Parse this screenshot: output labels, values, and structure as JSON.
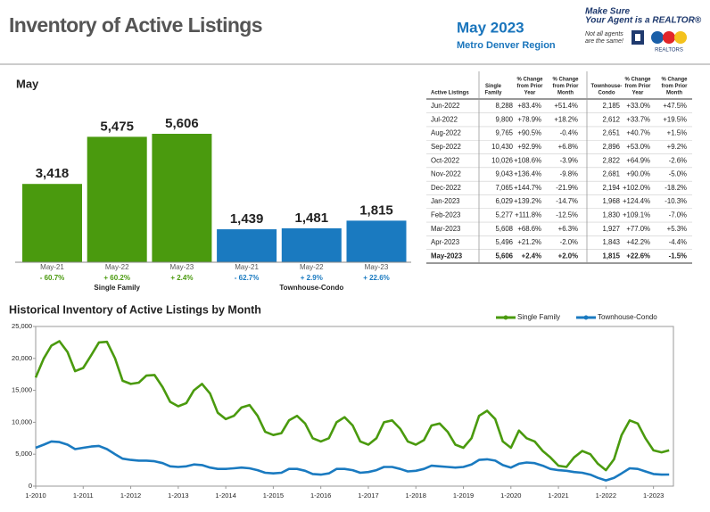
{
  "header": {
    "title": "Inventory of Active Listings",
    "period": "May 2023",
    "region": "Metro Denver Region",
    "logo": {
      "line1": "Make Sure",
      "line2": "Your Agent is a REALTOR®",
      "tag1": "Not all agents",
      "tag2": "are the same!",
      "mark": "REALTORS"
    }
  },
  "chart_data": [
    {
      "type": "bar",
      "title": "May",
      "series": [
        {
          "name": "Single Family",
          "color": "#4a9a0e",
          "categories": [
            "May-21",
            "May-22",
            "May-23"
          ],
          "values": [
            3418,
            5475,
            5606
          ],
          "value_labels": [
            "3,418",
            "5,475",
            "5,606"
          ],
          "change_labels": [
            "- 60.7%",
            "+ 60.2%",
            "+ 2.4%"
          ]
        },
        {
          "name": "Townhouse-Condo",
          "color": "#1a7ac0",
          "categories": [
            "May-21",
            "May-22",
            "May-23"
          ],
          "values": [
            1439,
            1481,
            1815
          ],
          "value_labels": [
            "1,439",
            "1,481",
            "1,815"
          ],
          "change_labels": [
            "- 62.7%",
            "+ 2.9%",
            "+ 22.6%"
          ]
        }
      ]
    },
    {
      "type": "line",
      "title": "Historical Inventory of Active Listings by Month",
      "legend": "top-right",
      "grid": false,
      "x": [
        2010,
        2010.17,
        2010.33,
        2010.5,
        2010.67,
        2010.83,
        2011,
        2011.17,
        2011.33,
        2011.5,
        2011.67,
        2011.83,
        2012,
        2012.17,
        2012.33,
        2012.5,
        2012.67,
        2012.83,
        2013,
        2013.17,
        2013.33,
        2013.5,
        2013.67,
        2013.83,
        2014,
        2014.17,
        2014.33,
        2014.5,
        2014.67,
        2014.83,
        2015,
        2015.17,
        2015.33,
        2015.5,
        2015.67,
        2015.83,
        2016,
        2016.17,
        2016.33,
        2016.5,
        2016.67,
        2016.83,
        2017,
        2017.17,
        2017.33,
        2017.5,
        2017.67,
        2017.83,
        2018,
        2018.17,
        2018.33,
        2018.5,
        2018.67,
        2018.83,
        2019,
        2019.17,
        2019.33,
        2019.5,
        2019.67,
        2019.83,
        2020,
        2020.17,
        2020.33,
        2020.5,
        2020.67,
        2020.83,
        2021,
        2021.17,
        2021.33,
        2021.5,
        2021.67,
        2021.83,
        2022,
        2022.17,
        2022.33,
        2022.5,
        2022.67,
        2022.83,
        2023,
        2023.17,
        2023.33
      ],
      "series": [
        {
          "name": "Single Family",
          "color": "#4a9a0e",
          "values": [
            17000,
            20000,
            22000,
            22700,
            21000,
            18000,
            18500,
            20500,
            22500,
            22600,
            20000,
            16500,
            16000,
            16200,
            17300,
            17400,
            15500,
            13200,
            12500,
            13000,
            15000,
            16000,
            14500,
            11500,
            10500,
            11000,
            12300,
            12700,
            11000,
            8500,
            8000,
            8300,
            10300,
            11000,
            9800,
            7500,
            7000,
            7500,
            10000,
            10800,
            9500,
            7000,
            6500,
            7500,
            10000,
            10300,
            9000,
            7000,
            6500,
            7200,
            9500,
            9800,
            8500,
            6500,
            6000,
            7500,
            11000,
            11800,
            10500,
            7000,
            6000,
            8700,
            7500,
            7000,
            5500,
            4500,
            3200,
            3000,
            4500,
            5500,
            5000,
            3500,
            2500,
            4200,
            8000,
            10300,
            9800,
            7500,
            5600,
            5300,
            5606
          ]
        },
        {
          "name": "Townhouse-Condo",
          "color": "#1a7ac0",
          "values": [
            6000,
            6500,
            7000,
            6900,
            6500,
            5800,
            6000,
            6200,
            6300,
            5800,
            5000,
            4300,
            4100,
            4000,
            4000,
            3900,
            3600,
            3100,
            3000,
            3100,
            3400,
            3300,
            2900,
            2700,
            2700,
            2800,
            2900,
            2800,
            2500,
            2100,
            2000,
            2100,
            2700,
            2700,
            2400,
            1900,
            1800,
            2000,
            2700,
            2700,
            2500,
            2100,
            2200,
            2500,
            3000,
            3000,
            2700,
            2300,
            2400,
            2700,
            3200,
            3100,
            3000,
            2900,
            3000,
            3400,
            4100,
            4200,
            4000,
            3300,
            2900,
            3500,
            3700,
            3600,
            3200,
            2700,
            2500,
            2400,
            2200,
            2100,
            1800,
            1300,
            900,
            1300,
            2000,
            2800,
            2700,
            2300,
            1900,
            1800,
            1815
          ]
        }
      ],
      "xlim": [
        2010,
        2023.42
      ],
      "xticks": [
        {
          "value": 2010,
          "label": "1-2010"
        },
        {
          "value": 2011,
          "label": "1-2011"
        },
        {
          "value": 2012,
          "label": "1-2012"
        },
        {
          "value": 2013,
          "label": "1-2013"
        },
        {
          "value": 2014,
          "label": "1-2014"
        },
        {
          "value": 2015,
          "label": "1-2015"
        },
        {
          "value": 2016,
          "label": "1-2016"
        },
        {
          "value": 2017,
          "label": "1-2017"
        },
        {
          "value": 2018,
          "label": "1-2018"
        },
        {
          "value": 2019,
          "label": "1-2019"
        },
        {
          "value": 2020,
          "label": "1-2020"
        },
        {
          "value": 2021,
          "label": "1-2021"
        },
        {
          "value": 2022,
          "label": "1-2022"
        },
        {
          "value": 2023,
          "label": "1-2023"
        }
      ],
      "ylim": [
        0,
        25000
      ],
      "yticks": [
        0,
        {
          "value": 5000,
          "label": "5,000"
        },
        {
          "value": 10000,
          "label": "10,000"
        },
        {
          "value": 15000,
          "label": "15,000"
        },
        {
          "value": 20000,
          "label": "20,000"
        },
        {
          "value": 25000,
          "label": "25,000"
        }
      ]
    }
  ],
  "table": {
    "columns": [
      [
        "Active Listings"
      ],
      [
        "Single",
        "Family"
      ],
      [
        "% Change",
        "from Prior",
        "Year"
      ],
      [
        "% Change",
        "from Prior",
        "Month"
      ],
      [
        "Townhouse-",
        "Condo"
      ],
      [
        "% Change",
        "from Prior",
        "Year"
      ],
      [
        "% Change",
        "from Prior",
        "Month"
      ]
    ],
    "rows": [
      [
        "Jun-2022",
        "8,288",
        "+83.4%",
        "+51.4%",
        "2,185",
        "+33.0%",
        "+47.5%"
      ],
      [
        "Jul-2022",
        "9,800",
        "+78.9%",
        "+18.2%",
        "2,612",
        "+33.7%",
        "+19.5%"
      ],
      [
        "Aug-2022",
        "9,765",
        "+90.5%",
        "-0.4%",
        "2,651",
        "+40.7%",
        "+1.5%"
      ],
      [
        "Sep-2022",
        "10,430",
        "+92.9%",
        "+6.8%",
        "2,896",
        "+53.0%",
        "+9.2%"
      ],
      [
        "Oct-2022",
        "10,026",
        "+108.6%",
        "-3.9%",
        "2,822",
        "+64.9%",
        "-2.6%"
      ],
      [
        "Nov-2022",
        "9,043",
        "+136.4%",
        "-9.8%",
        "2,681",
        "+90.0%",
        "-5.0%"
      ],
      [
        "Dec-2022",
        "7,065",
        "+144.7%",
        "-21.9%",
        "2,194",
        "+102.0%",
        "-18.2%"
      ],
      [
        "Jan-2023",
        "6,029",
        "+139.2%",
        "-14.7%",
        "1,968",
        "+124.4%",
        "-10.3%"
      ],
      [
        "Feb-2023",
        "5,277",
        "+111.8%",
        "-12.5%",
        "1,830",
        "+109.1%",
        "-7.0%"
      ],
      [
        "Mar-2023",
        "5,608",
        "+68.6%",
        "+6.3%",
        "1,927",
        "+77.0%",
        "+5.3%"
      ],
      [
        "Apr-2023",
        "5,496",
        "+21.2%",
        "-2.0%",
        "1,843",
        "+42.2%",
        "-4.4%"
      ],
      [
        "May-2023",
        "5,606",
        "+2.4%",
        "+2.0%",
        "1,815",
        "+22.6%",
        "-1.5%"
      ]
    ]
  }
}
